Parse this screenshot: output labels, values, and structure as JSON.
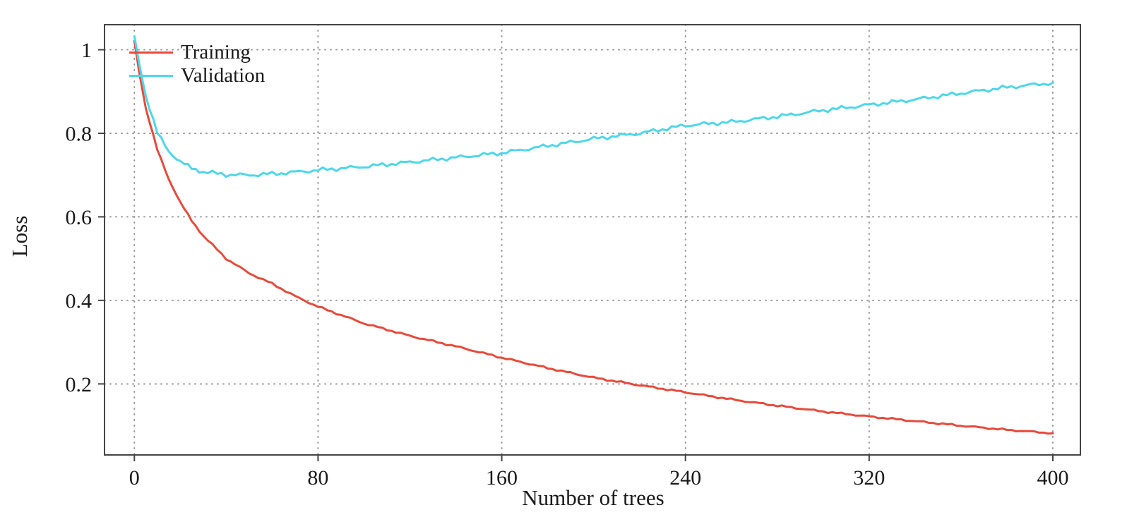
{
  "chart_data": {
    "type": "line",
    "title": "",
    "xlabel": "Number of trees",
    "ylabel": "Loss",
    "xlim": [
      -13,
      412
    ],
    "ylim": [
      0.03,
      1.06
    ],
    "xticks": [
      0,
      80,
      160,
      240,
      320,
      400
    ],
    "yticks": [
      0.2,
      0.4,
      0.6,
      0.8,
      1
    ],
    "grid": true,
    "grid_color": "#999999",
    "frame_color": "#444444",
    "text_color": "#1a1a1a",
    "legend_position": "top-left",
    "x": [
      0,
      2,
      5,
      10,
      15,
      20,
      25,
      30,
      40,
      50,
      60,
      70,
      80,
      100,
      120,
      140,
      160,
      180,
      200,
      220,
      240,
      260,
      280,
      300,
      320,
      340,
      360,
      380,
      400
    ],
    "series": [
      {
        "name": "Training",
        "color": "#e74a3c",
        "values": [
          1.02,
          0.95,
          0.86,
          0.76,
          0.69,
          0.635,
          0.59,
          0.555,
          0.5,
          0.465,
          0.44,
          0.41,
          0.385,
          0.345,
          0.315,
          0.29,
          0.263,
          0.238,
          0.215,
          0.197,
          0.18,
          0.163,
          0.148,
          0.134,
          0.122,
          0.111,
          0.1,
          0.09,
          0.082
        ]
      },
      {
        "name": "Validation",
        "color": "#4ed7e9",
        "values": [
          1.03,
          0.97,
          0.89,
          0.8,
          0.757,
          0.732,
          0.716,
          0.708,
          0.701,
          0.7,
          0.703,
          0.707,
          0.712,
          0.72,
          0.731,
          0.742,
          0.753,
          0.77,
          0.787,
          0.8,
          0.819,
          0.827,
          0.84,
          0.855,
          0.868,
          0.881,
          0.896,
          0.91,
          0.921
        ]
      }
    ]
  }
}
